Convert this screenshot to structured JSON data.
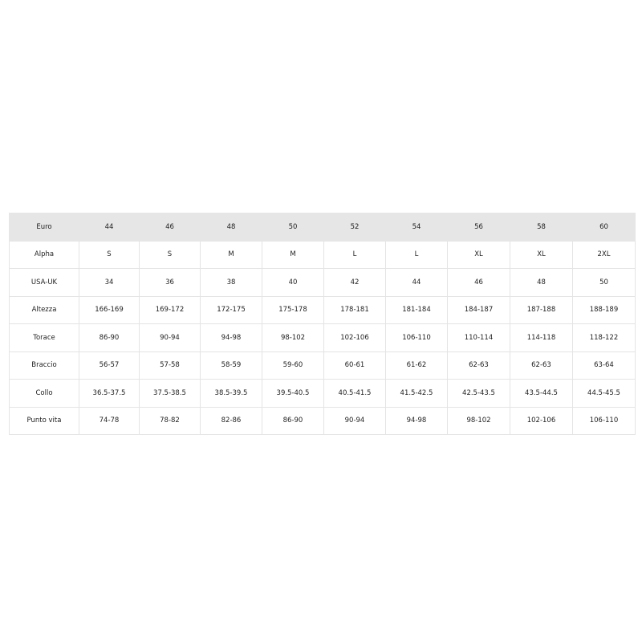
{
  "table": {
    "rows": [
      {
        "label": "Euro",
        "values": [
          "44",
          "46",
          "48",
          "50",
          "52",
          "54",
          "56",
          "58",
          "60"
        ]
      },
      {
        "label": "Alpha",
        "values": [
          "S",
          "S",
          "M",
          "M",
          "L",
          "L",
          "XL",
          "XL",
          "2XL"
        ]
      },
      {
        "label": "USA-UK",
        "values": [
          "34",
          "36",
          "38",
          "40",
          "42",
          "44",
          "46",
          "48",
          "50"
        ]
      },
      {
        "label": "Altezza",
        "values": [
          "166-169",
          "169-172",
          "172-175",
          "175-178",
          "178-181",
          "181-184",
          "184-187",
          "187-188",
          "188-189"
        ]
      },
      {
        "label": "Torace",
        "values": [
          "86-90",
          "90-94",
          "94-98",
          "98-102",
          "102-106",
          "106-110",
          "110-114",
          "114-118",
          "118-122"
        ]
      },
      {
        "label": "Braccio",
        "values": [
          "56-57",
          "57-58",
          "58-59",
          "59-60",
          "60-61",
          "61-62",
          "62-63",
          "62-63",
          "63-64"
        ]
      },
      {
        "label": "Collo",
        "values": [
          "36.5-37.5",
          "37.5-38.5",
          "38.5-39.5",
          "39.5-40.5",
          "40.5-41.5",
          "41.5-42.5",
          "42.5-43.5",
          "43.5-44.5",
          "44.5-45.5"
        ]
      },
      {
        "label": "Punto vita",
        "values": [
          "74-78",
          "78-82",
          "82-86",
          "86-90",
          "90-94",
          "94-98",
          "98-102",
          "102-106",
          "106-110"
        ]
      }
    ],
    "header_bg": "#e6e6e6"
  }
}
